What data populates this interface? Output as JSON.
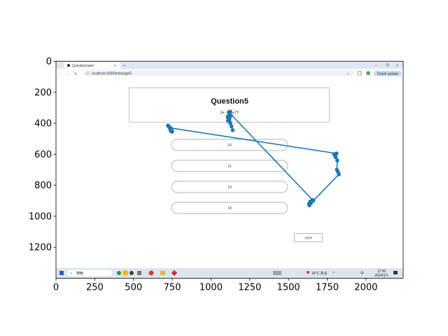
{
  "browser": {
    "tab_title": "Questionnaire",
    "new_tab": "+",
    "url": "localhost:3000/test/page5",
    "finish_update": "Finish update"
  },
  "question": {
    "title": "Question5",
    "subtitle": "3+___=7?"
  },
  "options": [
    "10",
    "11",
    "13",
    "14"
  ],
  "next_label": "next",
  "taskbar": {
    "search": "搜索",
    "weather": "16°C 多云",
    "time": "17:00",
    "date": "2024/1/1",
    "ime": "中"
  },
  "colors": {
    "trace": "#1f77b4",
    "browser_chrome": "#dfe7f7",
    "taskbar": "#dbe6ee"
  },
  "chart_data": {
    "type": "line",
    "title": "",
    "xlabel": "",
    "ylabel": "",
    "xlim": [
      0,
      2240
    ],
    "ylim": [
      1400,
      0
    ],
    "xticks": [
      0,
      250,
      500,
      750,
      1000,
      1250,
      1500,
      1750,
      2000
    ],
    "yticks": [
      0,
      200,
      400,
      600,
      800,
      1000,
      1200
    ],
    "series": [
      {
        "marker": "o",
        "x": [
          1125,
          1120,
          1118,
          1122,
          1115,
          1108,
          1112,
          1120,
          1128,
          1118,
          1110,
          1125,
          1132,
          1140,
          1115,
          1655,
          1640,
          1632,
          1635,
          1645,
          1660,
          1825,
          1820,
          1812,
          1815,
          1805,
          1800,
          1795,
          1810,
          735,
          728,
          722,
          730,
          738,
          745,
          740,
          750
        ],
        "y": [
          325,
          330,
          340,
          350,
          355,
          360,
          370,
          365,
          350,
          380,
          385,
          400,
          420,
          445,
          328,
          895,
          905,
          920,
          930,
          915,
          900,
          730,
          715,
          700,
          640,
          620,
          610,
          600,
          595,
          430,
          420,
          415,
          425,
          440,
          435,
          450,
          455
        ]
      }
    ]
  }
}
